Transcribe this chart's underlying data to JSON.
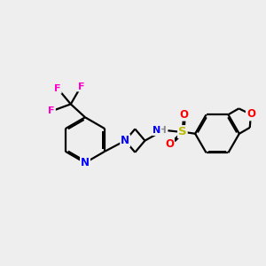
{
  "background_color": "#eeeeee",
  "atom_colors": {
    "N": "#0000ff",
    "F": "#ff00cc",
    "O": "#ff0000",
    "S": "#bbbb00",
    "H": "#888888",
    "C": "#000000"
  },
  "bond_color": "#000000",
  "bond_width": 1.6,
  "figsize": [
    3.0,
    3.0
  ],
  "dpi": 100
}
